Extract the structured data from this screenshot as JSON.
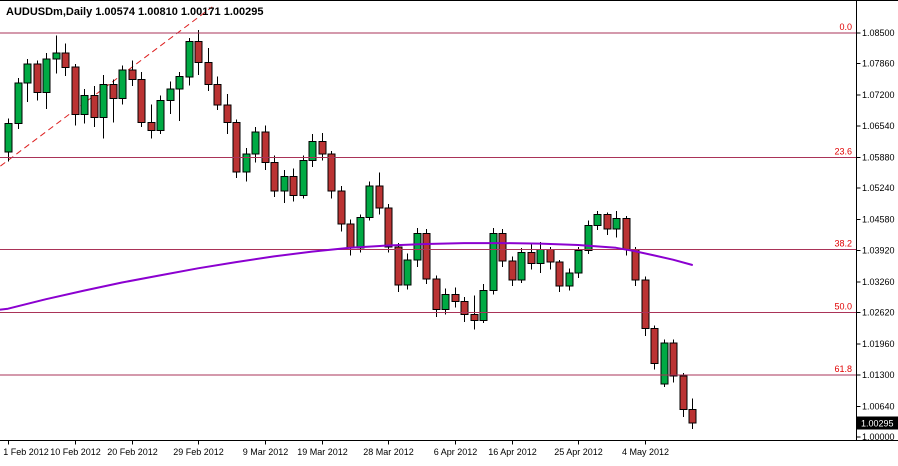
{
  "window_title": {
    "symbol_period": "AUDUSDm,Daily",
    "ohlc_line": "1.00574 1.00810 1.00171 1.00295"
  },
  "colors": {
    "background": "#ffffff",
    "bull": "#00aa44",
    "bear": "#bb3333",
    "outline": "#000000",
    "fib_line": "#aa3358",
    "fib_label": "#e00000",
    "trendline": "#dd2222",
    "moving_average": "#8b00d0",
    "axis_text": "#000000",
    "frame": "#000000",
    "badge_bg": "#000000",
    "badge_text": "#ffffff"
  },
  "chart_data": {
    "type": "candlestick",
    "symbol": "AUDUSDm",
    "timeframe": "Daily",
    "last_bar": {
      "open": "1.00574",
      "high": "1.00810",
      "low": "1.00171",
      "close": "1.00295"
    },
    "price_badge": "1.00295",
    "y_axis_labels": [
      "1.08500",
      "1.07860",
      "1.07200",
      "1.06540",
      "1.05880",
      "1.05240",
      "1.04580",
      "1.03920",
      "1.03260",
      "1.02620",
      "1.01960",
      "1.01300",
      "1.00640",
      "1.00000"
    ],
    "y_axis_range": {
      "top": 1.085,
      "bottom": 1.0
    },
    "x_labels": [
      [
        0,
        "1 Feb 2012"
      ],
      [
        7,
        "10 Feb 2012"
      ],
      [
        13,
        "20 Feb 2012"
      ],
      [
        20,
        "29 Feb 2012"
      ],
      [
        27,
        "9 Mar 2012"
      ],
      [
        33,
        "19 Mar 2012"
      ],
      [
        40,
        "28 Mar 2012"
      ],
      [
        47,
        "6 Apr 2012"
      ],
      [
        53,
        "16 Apr 2012"
      ],
      [
        60,
        "25 Apr 2012"
      ],
      [
        67,
        "4 May 2012"
      ]
    ],
    "fibonacci_levels": [
      {
        "label": "0.0",
        "price": 1.085
      },
      {
        "label": "23.6",
        "price": 1.0588
      },
      {
        "label": "38.2",
        "price": 1.0395
      },
      {
        "label": "50.0",
        "price": 1.0262
      },
      {
        "label": "61.8",
        "price": 1.013
      }
    ],
    "trendline": {
      "style": "dashed",
      "start_bar": -0.8,
      "start_price": 1.057,
      "end_bar": 21.5,
      "end_price": 1.0905
    },
    "moving_average": [
      [
        -0.8,
        1.0268
      ],
      [
        0,
        1.027
      ],
      [
        4,
        1.029
      ],
      [
        8,
        1.0308
      ],
      [
        12,
        1.0325
      ],
      [
        16,
        1.034
      ],
      [
        20,
        1.0355
      ],
      [
        24,
        1.0368
      ],
      [
        28,
        1.038
      ],
      [
        32,
        1.039
      ],
      [
        36,
        1.0398
      ],
      [
        40,
        1.0403
      ],
      [
        44,
        1.0406
      ],
      [
        48,
        1.0408
      ],
      [
        52,
        1.0408
      ],
      [
        56,
        1.0407
      ],
      [
        60,
        1.0404
      ],
      [
        64,
        1.0398
      ],
      [
        66,
        1.0391
      ],
      [
        68,
        1.0382
      ],
      [
        70,
        1.0373
      ],
      [
        72,
        1.0362
      ]
    ],
    "candles": [
      [
        1.06,
        1.067,
        1.058,
        1.066
      ],
      [
        1.066,
        1.0755,
        1.0648,
        1.0745
      ],
      [
        1.0745,
        1.0795,
        1.0705,
        1.0785
      ],
      [
        1.0785,
        1.0792,
        1.0708,
        1.0725
      ],
      [
        1.0725,
        1.0808,
        1.069,
        1.0795
      ],
      [
        1.0795,
        1.0845,
        1.0765,
        1.0808
      ],
      [
        1.0808,
        1.0828,
        1.076,
        1.0778
      ],
      [
        1.0778,
        1.0785,
        1.0655,
        1.0678
      ],
      [
        1.0678,
        1.0732,
        1.066,
        1.0718
      ],
      [
        1.0718,
        1.0738,
        1.0652,
        1.0672
      ],
      [
        1.0672,
        1.0762,
        1.0628,
        1.0742
      ],
      [
        1.0742,
        1.0752,
        1.0662,
        1.0712
      ],
      [
        1.0712,
        1.0782,
        1.07,
        1.0772
      ],
      [
        1.0772,
        1.0792,
        1.0738,
        1.0752
      ],
      [
        1.0752,
        1.0768,
        1.0652,
        1.0662
      ],
      [
        1.0662,
        1.07,
        1.0628,
        1.0645
      ],
      [
        1.0645,
        1.0718,
        1.0638,
        1.0708
      ],
      [
        1.0708,
        1.0748,
        1.068,
        1.0732
      ],
      [
        1.0732,
        1.0768,
        1.0665,
        1.0758
      ],
      [
        1.0758,
        1.084,
        1.074,
        1.0832
      ],
      [
        1.0832,
        1.0856,
        1.0762,
        1.0788
      ],
      [
        1.0788,
        1.0818,
        1.0728,
        1.0742
      ],
      [
        1.0742,
        1.0758,
        1.0688,
        1.0698
      ],
      [
        1.0698,
        1.0722,
        1.0638,
        1.0662
      ],
      [
        1.0662,
        1.0668,
        1.0545,
        1.0558
      ],
      [
        1.0558,
        1.0608,
        1.0538,
        1.0595
      ],
      [
        1.0595,
        1.0652,
        1.0578,
        1.0642
      ],
      [
        1.0642,
        1.0655,
        1.0562,
        1.0578
      ],
      [
        1.0578,
        1.0592,
        1.0505,
        1.0518
      ],
      [
        1.0518,
        1.0562,
        1.0492,
        1.0548
      ],
      [
        1.0548,
        1.0565,
        1.0495,
        1.0508
      ],
      [
        1.0508,
        1.0592,
        1.0502,
        1.0582
      ],
      [
        1.0582,
        1.0638,
        1.0568,
        1.0622
      ],
      [
        1.0622,
        1.064,
        1.0582,
        1.0595
      ],
      [
        1.0595,
        1.0602,
        1.0502,
        1.0518
      ],
      [
        1.0518,
        1.0528,
        1.0432,
        1.0448
      ],
      [
        1.0448,
        1.0458,
        1.0382,
        1.0398
      ],
      [
        1.0398,
        1.0468,
        1.0388,
        1.0462
      ],
      [
        1.0462,
        1.0538,
        1.0455,
        1.0528
      ],
      [
        1.0528,
        1.0556,
        1.0468,
        1.0482
      ],
      [
        1.0482,
        1.049,
        1.0388,
        1.04
      ],
      [
        1.04,
        1.0408,
        1.0305,
        1.032
      ],
      [
        1.032,
        1.0386,
        1.031,
        1.0372
      ],
      [
        1.0372,
        1.044,
        1.0358,
        1.0428
      ],
      [
        1.0428,
        1.0438,
        1.0322,
        1.0332
      ],
      [
        1.0332,
        1.034,
        1.0252,
        1.0268
      ],
      [
        1.0268,
        1.0312,
        1.0258,
        1.03
      ],
      [
        1.03,
        1.0315,
        1.0272,
        1.0285
      ],
      [
        1.0285,
        1.0295,
        1.0242,
        1.0258
      ],
      [
        1.0258,
        1.0298,
        1.0226,
        1.0245
      ],
      [
        1.0245,
        1.0322,
        1.024,
        1.0308
      ],
      [
        1.0308,
        1.044,
        1.03,
        1.0428
      ],
      [
        1.0428,
        1.0438,
        1.0358,
        1.037
      ],
      [
        1.037,
        1.038,
        1.0318,
        1.033
      ],
      [
        1.033,
        1.0398,
        1.0324,
        1.0388
      ],
      [
        1.0388,
        1.0405,
        1.0352,
        1.0365
      ],
      [
        1.0365,
        1.041,
        1.0345,
        1.0395
      ],
      [
        1.0395,
        1.04,
        1.0352,
        1.0368
      ],
      [
        1.0368,
        1.0372,
        1.0305,
        1.0318
      ],
      [
        1.0318,
        1.0355,
        1.0308,
        1.0345
      ],
      [
        1.0345,
        1.04,
        1.0335,
        1.0392
      ],
      [
        1.0392,
        1.0455,
        1.0385,
        1.0445
      ],
      [
        1.0445,
        1.0475,
        1.0435,
        1.0468
      ],
      [
        1.0468,
        1.0472,
        1.0425,
        1.0438
      ],
      [
        1.0438,
        1.0475,
        1.042,
        1.046
      ],
      [
        1.046,
        1.0465,
        1.0382,
        1.0395
      ],
      [
        1.0395,
        1.04,
        1.0318,
        1.033
      ],
      [
        1.033,
        1.0338,
        1.0212,
        1.0228
      ],
      [
        1.0228,
        1.0235,
        1.0142,
        1.0155
      ],
      [
        1.0112,
        1.0205,
        1.0105,
        1.0198
      ],
      [
        1.0198,
        1.0205,
        1.0115,
        1.0128
      ],
      [
        1.0128,
        1.0135,
        1.0042,
        1.0058
      ],
      [
        1.00574,
        1.0081,
        1.00171,
        1.00295
      ]
    ]
  }
}
